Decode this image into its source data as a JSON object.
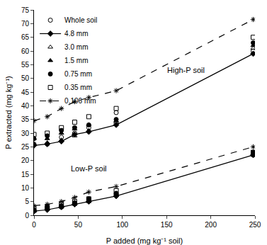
{
  "chart_data": {
    "type": "line",
    "x_label": "P added (mg kg⁻¹ soil)",
    "y_label": "P extracted (mg kg⁻¹)",
    "x": [
      0,
      15,
      31,
      46,
      62,
      93,
      248
    ],
    "xlim": [
      0,
      250
    ],
    "xticks": [
      0,
      50,
      100,
      150,
      200,
      250
    ],
    "ylim": [
      0,
      75
    ],
    "yticks": [
      0,
      5,
      10,
      15,
      20,
      25,
      30,
      35,
      40,
      45,
      50,
      55,
      60,
      65,
      70,
      75
    ],
    "grid": false,
    "legend": "top-left",
    "annotations": [
      {
        "text": "High-P soil",
        "x": 172,
        "y": 53
      },
      {
        "text": "Low-P soil",
        "x": 62,
        "y": 17
      }
    ],
    "series": [
      {
        "name": "Whole soil",
        "group": "High-P soil",
        "color": "#000000",
        "marker": "circle-open",
        "line_style": "none",
        "values": [
          26,
          26,
          28.5,
          30,
          32,
          37.5,
          60
        ]
      },
      {
        "name": "4.8 mm",
        "group": "High-P soil",
        "color": "#000000",
        "marker": "diamond",
        "line_style": "solid",
        "values": [
          25.5,
          26,
          27,
          29.5,
          30.5,
          33,
          59
        ]
      },
      {
        "name": "3.0 mm",
        "group": "High-P soil",
        "color": "#000000",
        "marker": "triangle-up-open",
        "line_style": "none",
        "values": [
          26,
          26.5,
          27.5,
          29,
          31,
          34,
          61
        ]
      },
      {
        "name": "1.5 mm",
        "group": "High-P soil",
        "color": "#000000",
        "marker": "triangle-up",
        "line_style": "none",
        "values": [
          28,
          28,
          30,
          31.5,
          33,
          34.5,
          62
        ]
      },
      {
        "name": "0.75 mm",
        "group": "High-P soil",
        "color": "#000000",
        "marker": "circle",
        "line_style": "none",
        "values": [
          28,
          29,
          31,
          32,
          33,
          35,
          63
        ]
      },
      {
        "name": "0.35 mm",
        "group": "High-P soil",
        "color": "#000000",
        "marker": "square-open",
        "line_style": "none",
        "values": [
          29.5,
          30,
          32,
          34,
          36,
          39,
          65
        ]
      },
      {
        "name": "0.106 mm",
        "group": "High-P soil",
        "color": "#000000",
        "marker": "asterisk-open",
        "line_style": "dash",
        "values": [
          34.5,
          36,
          39,
          41.5,
          43,
          45.5,
          71.5
        ]
      },
      {
        "name": "Whole soil",
        "group": "Low-P soil",
        "color": "#000000",
        "marker": "circle-open",
        "line_style": "none",
        "values": [
          1.5,
          2.5,
          3,
          4.5,
          5.5,
          8,
          22
        ]
      },
      {
        "name": "4.8 mm",
        "group": "Low-P soil",
        "color": "#000000",
        "marker": "diamond",
        "line_style": "solid",
        "values": [
          1.5,
          2,
          3,
          4,
          5,
          7,
          22
        ]
      },
      {
        "name": "3.0 mm",
        "group": "Low-P soil",
        "color": "#000000",
        "marker": "triangle-up-open",
        "line_style": "none",
        "values": [
          1.5,
          2.5,
          3,
          4,
          5,
          7.5,
          22
        ]
      },
      {
        "name": "1.5 mm",
        "group": "Low-P soil",
        "color": "#000000",
        "marker": "triangle-up",
        "line_style": "none",
        "values": [
          2,
          2.5,
          3.5,
          4.5,
          5.5,
          8,
          22.5
        ]
      },
      {
        "name": "0.75 mm",
        "group": "Low-P soil",
        "color": "#000000",
        "marker": "circle",
        "line_style": "none",
        "values": [
          2,
          3,
          3.5,
          4.5,
          6,
          8,
          23
        ]
      },
      {
        "name": "0.35 mm",
        "group": "Low-P soil",
        "color": "#000000",
        "marker": "square-open",
        "line_style": "none",
        "values": [
          2.5,
          3,
          4,
          5,
          6,
          9,
          23
        ]
      },
      {
        "name": "0.106 mm",
        "group": "Low-P soil",
        "color": "#000000",
        "marker": "asterisk-open",
        "line_style": "dash",
        "values": [
          3.5,
          4,
          5,
          6.5,
          8.5,
          10.5,
          25
        ]
      }
    ]
  }
}
